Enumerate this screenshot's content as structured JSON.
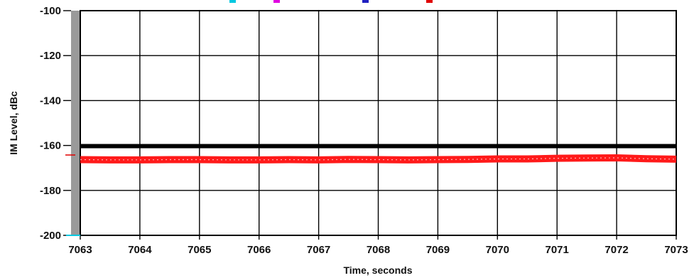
{
  "chart_data": {
    "type": "line",
    "title": "",
    "xlabel": "Time, seconds",
    "ylabel": "IM Level, dBc",
    "xlim": [
      7063,
      7073
    ],
    "ylim": [
      -200,
      -100
    ],
    "x_ticks": [
      7063,
      7064,
      7065,
      7066,
      7067,
      7068,
      7069,
      7070,
      7071,
      7072,
      7073
    ],
    "y_ticks": [
      -100,
      -120,
      -140,
      -160,
      -180,
      -200
    ],
    "grid": true,
    "legend_markers": [
      "#00c8e0",
      "#e000e0",
      "#2020c0",
      "#e00000"
    ],
    "series": [
      {
        "color": "#000000",
        "x": [
          7063,
          7073
        ],
        "y": [
          -160.3,
          -160.3
        ]
      },
      {
        "color": "#ff1a1a",
        "x": [
          7063,
          7063.5,
          7064,
          7064.5,
          7065,
          7065.5,
          7066,
          7066.5,
          7067,
          7067.5,
          7068,
          7068.5,
          7069,
          7069.5,
          7070,
          7070.5,
          7071,
          7071.5,
          7072,
          7072.5,
          7073
        ],
        "y": [
          -166.3,
          -166.4,
          -166.4,
          -166.3,
          -166.3,
          -166.4,
          -166.4,
          -166.3,
          -166.4,
          -166.2,
          -166.3,
          -166.4,
          -166.3,
          -166.2,
          -166.0,
          -166.0,
          -165.7,
          -165.6,
          -165.5,
          -165.9,
          -166.1
        ]
      }
    ]
  }
}
